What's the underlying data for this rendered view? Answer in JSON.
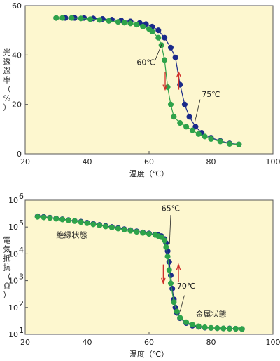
{
  "colors": {
    "background": "#fdf7cf",
    "heating": "#1a2a8a",
    "cooling": "#2ea34a",
    "arrow_red": "#d0302a"
  },
  "chart_data": [
    {
      "type": "line",
      "xlabel": "温度（℃）",
      "ylabel_chars": [
        "光",
        "透",
        "過",
        "率",
        "（",
        "%",
        "）"
      ],
      "xlim": [
        20,
        100
      ],
      "ylim": [
        0,
        60
      ],
      "xticks": [
        20,
        40,
        60,
        80,
        100
      ],
      "yticks": [
        0,
        20,
        40,
        60
      ],
      "grid": false,
      "annotations": [
        {
          "text": "60℃",
          "x": 59,
          "y": 36
        },
        {
          "text": "75℃",
          "x": 80,
          "y": 23
        }
      ],
      "series": [
        {
          "color_key": "heating",
          "x": [
            30,
            33,
            36,
            39,
            42,
            45,
            48,
            51,
            54,
            57,
            59,
            61,
            63,
            65,
            67,
            68.5,
            70,
            71.5,
            73,
            75,
            77,
            80,
            83,
            86,
            89
          ],
          "y": [
            55,
            55,
            55,
            55,
            54.8,
            54.6,
            54.3,
            54,
            53.6,
            53,
            52.5,
            51.5,
            50,
            47,
            43,
            39,
            28,
            20,
            15,
            11,
            8.5,
            6.5,
            5.2,
            4.2,
            3.8
          ]
        },
        {
          "color_key": "cooling",
          "x": [
            89,
            86,
            83,
            80,
            78,
            76,
            74,
            72,
            70,
            68,
            67,
            66,
            65,
            64,
            63,
            61,
            60,
            58,
            56,
            54,
            52,
            50,
            47,
            44,
            41,
            38,
            35,
            32,
            30
          ],
          "y": [
            3.8,
            4,
            5,
            6,
            7,
            8,
            9.5,
            11,
            12.5,
            15,
            20,
            27,
            38,
            44,
            47,
            49.5,
            50.5,
            51.5,
            52.3,
            52.8,
            53.1,
            53.4,
            53.8,
            54.2,
            54.5,
            54.8,
            55,
            55,
            55
          ]
        }
      ]
    },
    {
      "type": "line",
      "xlabel": "温度（℃）",
      "ylabel_chars": [
        "電",
        "気",
        "抵",
        "抗",
        "（",
        "Ω",
        "）"
      ],
      "xlim": [
        20,
        100
      ],
      "ylog": true,
      "ylim_exp": [
        1,
        6
      ],
      "xticks": [
        20,
        40,
        60,
        80,
        100
      ],
      "yticks_exp": [
        1,
        2,
        3,
        4,
        5,
        6
      ],
      "ytick_base": "10",
      "grid": false,
      "annotations": [
        {
          "text": "絶縁状態",
          "x": 35,
          "exp": 4.6
        },
        {
          "text": "65℃",
          "x": 67,
          "exp": 5.6
        },
        {
          "text": "70℃",
          "x": 72,
          "exp": 2.7
        },
        {
          "text": "金属状態",
          "x": 80,
          "exp": 1.65
        }
      ],
      "series": [
        {
          "color_key": "heating",
          "x": [
            24,
            26,
            28,
            30,
            32,
            34,
            36,
            38,
            40,
            42,
            44,
            46,
            48,
            50,
            52,
            54,
            56,
            58,
            60,
            62,
            63,
            64,
            65,
            65.5,
            66,
            66.5,
            67,
            67.5,
            68,
            68.5,
            69,
            70,
            72,
            74,
            76,
            78,
            80,
            82,
            84,
            86,
            88,
            90
          ],
          "y": [
            5.4,
            5.38,
            5.35,
            5.32,
            5.29,
            5.26,
            5.23,
            5.2,
            5.16,
            5.12,
            5.08,
            5.04,
            5.0,
            4.96,
            4.92,
            4.88,
            4.84,
            4.8,
            4.76,
            4.72,
            4.7,
            4.66,
            4.55,
            4.4,
            4.1,
            3.7,
            3.2,
            2.7,
            2.3,
            2.0,
            1.8,
            1.6,
            1.42,
            1.32,
            1.28,
            1.25,
            1.24,
            1.23,
            1.22,
            1.22,
            1.21,
            1.2
          ]
        },
        {
          "color_key": "cooling",
          "x": [
            90,
            88,
            86,
            84,
            82,
            80,
            78,
            76,
            74,
            72,
            70,
            69,
            68,
            67,
            66.5,
            66,
            65.5,
            65,
            64,
            63,
            62,
            60,
            58,
            56,
            54,
            52,
            50,
            48,
            46,
            44,
            42,
            40,
            38,
            36,
            34,
            32,
            30,
            28,
            26,
            24
          ],
          "y": [
            1.2,
            1.21,
            1.21,
            1.22,
            1.23,
            1.24,
            1.26,
            1.3,
            1.36,
            1.45,
            1.62,
            1.85,
            2.2,
            2.9,
            3.4,
            3.9,
            4.25,
            4.5,
            4.62,
            4.66,
            4.7,
            4.74,
            4.78,
            4.82,
            4.86,
            4.9,
            4.94,
            4.98,
            5.02,
            5.06,
            5.1,
            5.14,
            5.18,
            5.22,
            5.25,
            5.28,
            5.31,
            5.34,
            5.36,
            5.38
          ]
        }
      ]
    }
  ]
}
